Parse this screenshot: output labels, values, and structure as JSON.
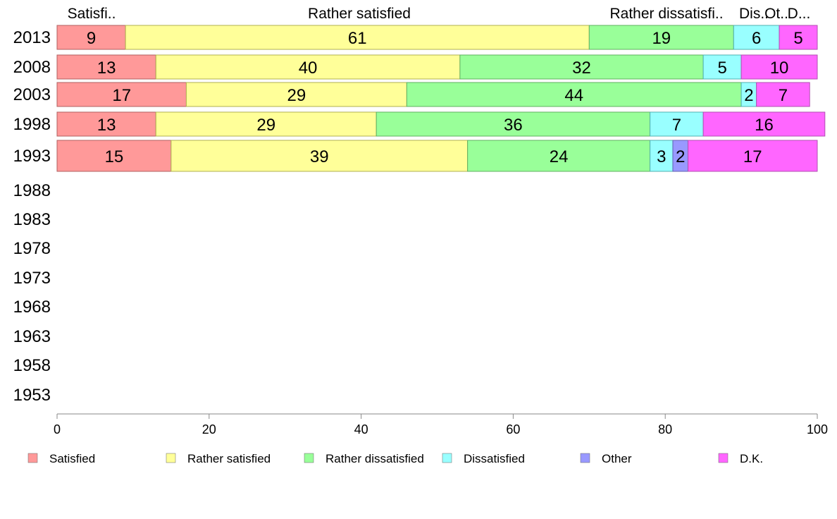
{
  "chart_data": {
    "type": "bar",
    "orientation": "horizontal",
    "stacked": true,
    "categories": [
      "2013",
      "2008",
      "2003",
      "1998",
      "1993",
      "1988",
      "1983",
      "1978",
      "1973",
      "1968",
      "1963",
      "1958",
      "1953"
    ],
    "series": [
      {
        "name": "Satisfied",
        "color": "#ff9999",
        "values": [
          9,
          13,
          17,
          13,
          15,
          null,
          null,
          null,
          null,
          null,
          null,
          null,
          null
        ]
      },
      {
        "name": "Rather satisfied",
        "color": "#ffff99",
        "values": [
          61,
          40,
          29,
          29,
          39,
          null,
          null,
          null,
          null,
          null,
          null,
          null,
          null
        ]
      },
      {
        "name": "Rather dissatisfied",
        "color": "#99ff99",
        "values": [
          19,
          32,
          44,
          36,
          24,
          null,
          null,
          null,
          null,
          null,
          null,
          null,
          null
        ]
      },
      {
        "name": "Dissatisfied",
        "color": "#99ffff",
        "values": [
          6,
          5,
          2,
          7,
          3,
          null,
          null,
          null,
          null,
          null,
          null,
          null,
          null
        ]
      },
      {
        "name": "Other",
        "color": "#9999ff",
        "values": [
          0,
          0,
          0,
          0,
          2,
          null,
          null,
          null,
          null,
          null,
          null,
          null,
          null
        ]
      },
      {
        "name": "D.K.",
        "color": "#ff66ff",
        "values": [
          5,
          10,
          7,
          16,
          17,
          null,
          null,
          null,
          null,
          null,
          null,
          null,
          null
        ]
      }
    ],
    "top_labels": [
      "Satisfi..",
      "Rather satisfied",
      "Rather dissatisfi..",
      "Dis..",
      "Ot..",
      "D..."
    ],
    "xlim": [
      0,
      100
    ],
    "xticks": [
      0,
      20,
      40,
      60,
      80,
      100
    ],
    "grid": false,
    "legend_position": "bottom",
    "title": "",
    "xlabel": "",
    "ylabel": ""
  }
}
